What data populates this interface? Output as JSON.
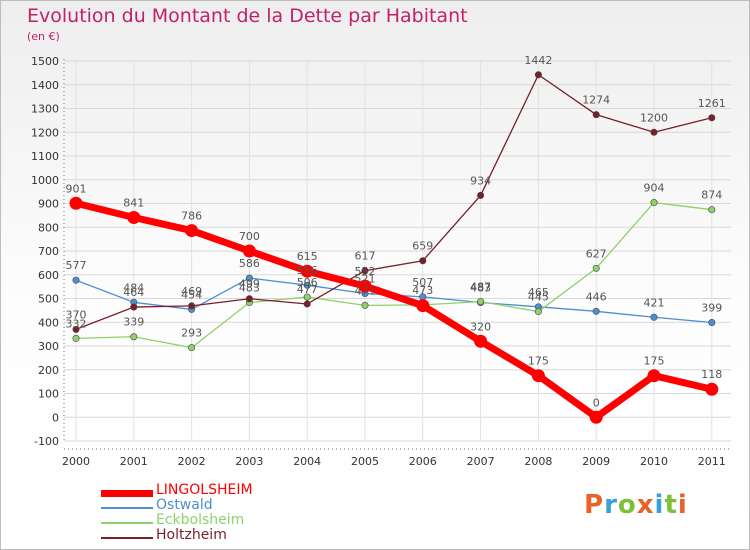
{
  "header": {
    "title": "Evolution du Montant de la Dette par Habitant",
    "unit": "(en €)"
  },
  "logo": {
    "text": "Proxiti",
    "colors": [
      "#e8632c",
      "#3aa0d8",
      "#7fbf3a",
      "#e8632c",
      "#3aa0d8",
      "#7fbf3a",
      "#e8632c"
    ]
  },
  "chart_data": {
    "type": "line",
    "title": "Evolution du Montant de la Dette par Habitant",
    "ylabel": "(en €)",
    "xlabel": "",
    "x": [
      "2000",
      "2001",
      "2002",
      "2003",
      "2004",
      "2005",
      "2006",
      "2007",
      "2008",
      "2009",
      "2010",
      "2011"
    ],
    "ylim": [
      -100,
      1500
    ],
    "yticks": [
      "-100",
      "0",
      "100",
      "200",
      "300",
      "400",
      "500",
      "600",
      "700",
      "800",
      "900",
      "1000",
      "1100",
      "1200",
      "1300",
      "1400",
      "1500"
    ],
    "grid": true,
    "legend_position": "bottom-left",
    "series": [
      {
        "name": "LINGOLSHEIM",
        "color": "#ff0000",
        "values": [
          901,
          841,
          786,
          700,
          615,
          552,
          470,
          320,
          175,
          0,
          175,
          118
        ]
      },
      {
        "name": "Ostwald",
        "color": "#4f8fcf",
        "values": [
          577,
          484,
          454,
          586,
          556,
          521,
          507,
          483,
          465,
          446,
          421,
          399
        ]
      },
      {
        "name": "Eckbolsheim",
        "color": "#8fd16a",
        "values": [
          332,
          339,
          293,
          483,
          506,
          471,
          473,
          487,
          445,
          627,
          904,
          874
        ]
      },
      {
        "name": "Holtzheim",
        "color": "#7a1e28",
        "values": [
          370,
          464,
          469,
          499,
          477,
          617,
          659,
          934,
          1442,
          1274,
          1200,
          1261
        ]
      }
    ],
    "point_labels": [
      [
        "901",
        "841",
        "786",
        "700",
        "615",
        "552",
        "",
        "320",
        "175",
        "0",
        "175",
        "118"
      ],
      [
        "577",
        "484",
        "454",
        "586",
        "556",
        "521",
        "507",
        "483",
        "465",
        "446",
        "421",
        "399"
      ],
      [
        "332",
        "339",
        "293",
        "483",
        "506",
        "471",
        "473",
        "487",
        "445",
        "627",
        "904",
        "874"
      ],
      [
        "370",
        "464",
        "469",
        "499",
        "477",
        "617",
        "659",
        "934",
        "1442",
        "1274",
        "1200",
        "1261"
      ]
    ]
  }
}
